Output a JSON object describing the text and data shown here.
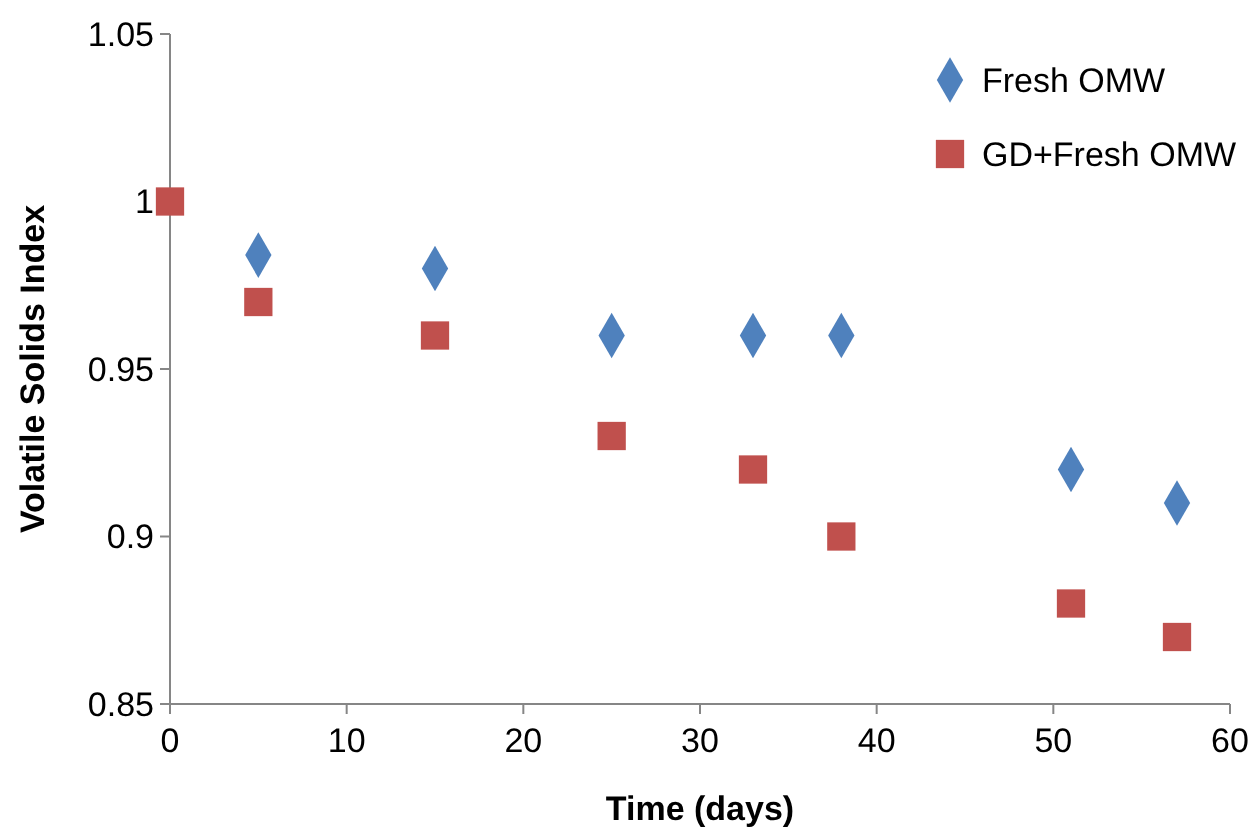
{
  "chart_data": {
    "type": "scatter",
    "xlabel": "Time (days)",
    "ylabel": "Volatile Solids Index",
    "xlim": [
      0,
      60
    ],
    "xticks": [
      0,
      10,
      20,
      30,
      40,
      50,
      60
    ],
    "ylim": [
      0.85,
      1.05
    ],
    "yticks": [
      0.85,
      0.9,
      0.95,
      1,
      1.05
    ],
    "grid": false,
    "legend": "top right",
    "series": [
      {
        "name": "Fresh OMW",
        "color": "#4f81bd",
        "marker": "diamond",
        "x": [
          5,
          15,
          25,
          33,
          38,
          51,
          57
        ],
        "values": [
          0.984,
          0.98,
          0.96,
          0.96,
          0.96,
          0.92,
          0.91
        ]
      },
      {
        "name": "GD+Fresh OMW",
        "color": "#c0504d",
        "marker": "square",
        "x": [
          0,
          5,
          15,
          25,
          33,
          38,
          51,
          57
        ],
        "values": [
          1,
          0.97,
          0.96,
          0.93,
          0.92,
          0.9,
          0.88,
          0.87
        ]
      }
    ]
  }
}
